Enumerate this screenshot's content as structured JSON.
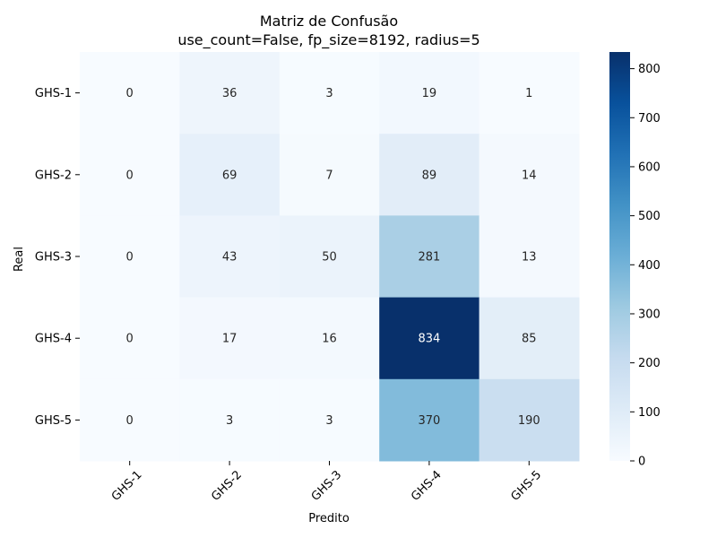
{
  "chart_data": {
    "type": "heatmap",
    "title": "Matriz de Confusão",
    "subtitle": "use_count=False, fp_size=8192, radius=5",
    "xlabel": "Predito",
    "ylabel": "Real",
    "x_categories": [
      "GHS-1",
      "GHS-2",
      "GHS-3",
      "GHS-4",
      "GHS-5"
    ],
    "y_categories": [
      "GHS-1",
      "GHS-2",
      "GHS-3",
      "GHS-4",
      "GHS-5"
    ],
    "values": [
      [
        0,
        36,
        3,
        19,
        1
      ],
      [
        0,
        69,
        7,
        89,
        14
      ],
      [
        0,
        43,
        50,
        281,
        13
      ],
      [
        0,
        17,
        16,
        834,
        85
      ],
      [
        0,
        3,
        3,
        370,
        190
      ]
    ],
    "colorbar": {
      "min": 0,
      "max": 834,
      "ticks": [
        0,
        100,
        200,
        300,
        400,
        500,
        600,
        700,
        800
      ]
    },
    "colormap": "Blues",
    "colors": [
      "#f7fbff",
      "#deebf7",
      "#c6dbef",
      "#9ecae1",
      "#6baed6",
      "#4292c6",
      "#2171b5",
      "#08519c",
      "#08306b"
    ]
  }
}
